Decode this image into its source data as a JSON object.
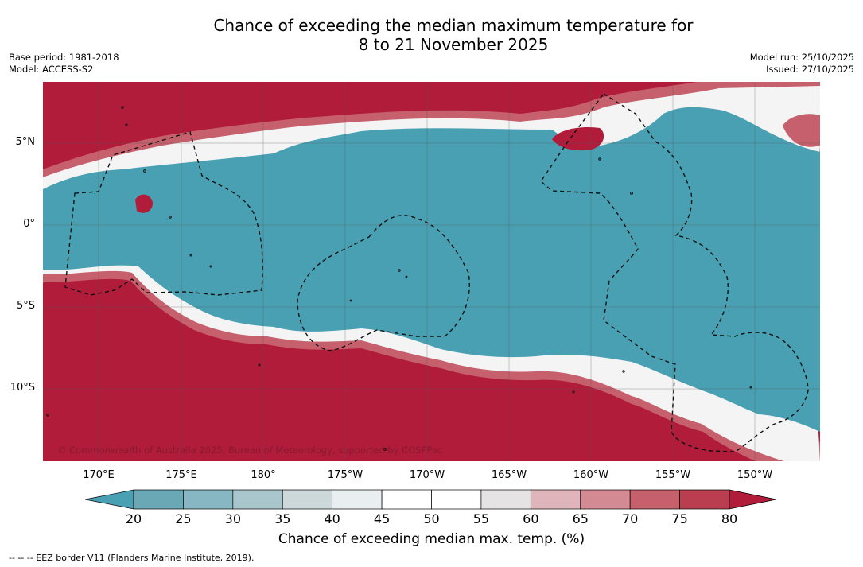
{
  "title": {
    "line1": "Chance of exceeding the median maximum temperature for",
    "line2": "8 to 21 November 2025"
  },
  "meta": {
    "base_period": "Base period: 1981-2018",
    "model": "Model: ACCESS-S2",
    "model_run": "Model run: 25/10/2025",
    "issued": "Issued: 27/10/2025"
  },
  "axes": {
    "lat_labels": [
      "5°N",
      "0°",
      "5°S",
      "10°S"
    ],
    "lon_labels": [
      "170°E",
      "175°E",
      "180°",
      "175°W",
      "170°W",
      "165°W",
      "160°W",
      "155°W",
      "150°W"
    ]
  },
  "colorbar": {
    "ticks": [
      "20",
      "25",
      "30",
      "35",
      "40",
      "45",
      "50",
      "55",
      "60",
      "65",
      "70",
      "75",
      "80"
    ],
    "colors": [
      "#69a8b4",
      "#86b7c2",
      "#a9c6cc",
      "#cdd8db",
      "#e9eff1",
      "#ffffff",
      "#ffffff",
      "#e6e3e4",
      "#dfb5bb",
      "#d38a93",
      "#c6606d",
      "#ba3e50"
    ],
    "low_extend_color": "#4aa0b3",
    "high_extend_color": "#b01c3a",
    "label": "Chance of exceeding median max. temp. (%)"
  },
  "map_colors": {
    "below": "#48a0b2",
    "above": "#b01c3a"
  },
  "copyright": "© Commonwealth of Australia 2025, Bureau of Meteorology, supported by COSPPac",
  "footer": "--  --  -- EEZ border V11 (Flanders Marine Institute, 2019)."
}
